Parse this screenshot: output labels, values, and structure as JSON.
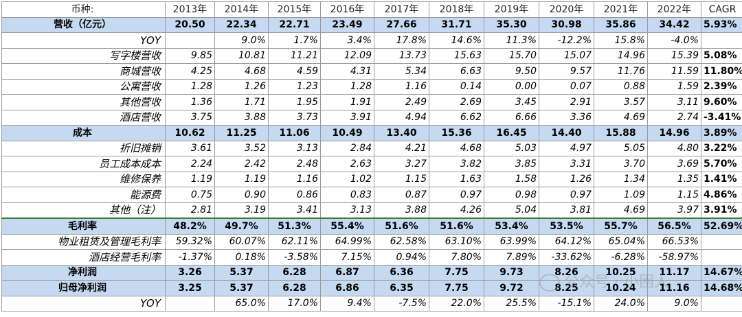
{
  "header": [
    "币种:",
    "2013年",
    "2014年",
    "2015年",
    "2016年",
    "2017年",
    "2018年",
    "2019年",
    "2020年",
    "2021年",
    "2022年",
    "CAGR"
  ],
  "rows": [
    {
      "type": "sum",
      "label": "营收（亿元）",
      "values": [
        "20.50",
        "22.34",
        "22.71",
        "23.49",
        "27.66",
        "31.71",
        "35.30",
        "30.98",
        "35.86",
        "34.42"
      ],
      "cagr": "5.93%"
    },
    {
      "type": "sub",
      "label": "YOY",
      "values": [
        "",
        "9.0%",
        "1.7%",
        "3.4%",
        "17.8%",
        "14.6%",
        "11.3%",
        "-12.2%",
        "15.8%",
        "-4.0%"
      ],
      "cagr": ""
    },
    {
      "type": "sub",
      "label": "写字楼营收",
      "values": [
        "9.85",
        "10.81",
        "11.21",
        "12.09",
        "13.73",
        "15.63",
        "15.70",
        "15.07",
        "14.96",
        "15.39"
      ],
      "cagr": "5.08%"
    },
    {
      "type": "sub",
      "label": "商城营收",
      "values": [
        "4.25",
        "4.68",
        "4.59",
        "4.31",
        "5.34",
        "6.63",
        "9.50",
        "9.57",
        "11.76",
        "11.59"
      ],
      "cagr": "11.80%"
    },
    {
      "type": "sub",
      "label": "公寓营收",
      "values": [
        "1.28",
        "1.26",
        "1.23",
        "1.28",
        "1.16",
        "0.14",
        "0.00",
        "0.07",
        "0.88",
        "1.59"
      ],
      "cagr": "2.39%"
    },
    {
      "type": "sub",
      "label": "其他营收",
      "values": [
        "1.36",
        "1.71",
        "1.95",
        "1.91",
        "2.49",
        "2.69",
        "3.45",
        "2.91",
        "3.57",
        "3.11"
      ],
      "cagr": "9.60%"
    },
    {
      "type": "sub",
      "label": "酒店营收",
      "values": [
        "3.75",
        "3.88",
        "3.73",
        "3.91",
        "4.94",
        "6.62",
        "6.66",
        "3.36",
        "4.69",
        "2.74"
      ],
      "cagr": "-3.41%"
    },
    {
      "type": "sum",
      "label": "成本",
      "values": [
        "10.62",
        "11.25",
        "11.06",
        "10.49",
        "13.40",
        "15.36",
        "16.45",
        "14.40",
        "15.88",
        "14.96"
      ],
      "cagr": "3.89%"
    },
    {
      "type": "sub",
      "label": "折旧摊销",
      "values": [
        "3.61",
        "3.52",
        "3.13",
        "2.84",
        "4.21",
        "4.68",
        "5.03",
        "4.97",
        "5.05",
        "4.80"
      ],
      "cagr": "3.22%"
    },
    {
      "type": "sub",
      "label": "员工成本成本",
      "values": [
        "2.24",
        "2.42",
        "2.48",
        "2.63",
        "3.27",
        "3.82",
        "3.85",
        "3.31",
        "3.70",
        "3.69"
      ],
      "cagr": "5.70%"
    },
    {
      "type": "sub",
      "label": "维修保养",
      "values": [
        "1.19",
        "1.19",
        "1.16",
        "1.02",
        "1.15",
        "1.63",
        "1.58",
        "1.26",
        "1.34",
        "1.35"
      ],
      "cagr": "1.41%"
    },
    {
      "type": "sub",
      "label": "能源费",
      "values": [
        "0.75",
        "0.90",
        "0.86",
        "0.83",
        "0.87",
        "0.97",
        "0.98",
        "0.97",
        "1.09",
        "1.15"
      ],
      "cagr": "4.86%"
    },
    {
      "type": "sub",
      "label": "其他（注）",
      "values": [
        "2.81",
        "3.19",
        "3.41",
        "3.13",
        "3.88",
        "4.26",
        "5.04",
        "3.81",
        "4.69",
        "3.97"
      ],
      "cagr": "3.91%"
    },
    {
      "type": "sum",
      "label": "毛利率",
      "values": [
        "48.2%",
        "49.7%",
        "51.3%",
        "55.4%",
        "51.6%",
        "51.6%",
        "53.4%",
        "53.5%",
        "55.7%",
        "56.5%"
      ],
      "cagr": "52.69%",
      "thick": true
    },
    {
      "type": "sub",
      "label": "物业租赁及管理毛利率",
      "values": [
        "59.32%",
        "60.07%",
        "62.11%",
        "64.99%",
        "62.58%",
        "63.10%",
        "63.99%",
        "64.12%",
        "65.04%",
        "66.53%"
      ],
      "cagr": ""
    },
    {
      "type": "sub",
      "label": "酒店经营毛利率",
      "values": [
        "-1.37%",
        "0.18%",
        "-3.58%",
        "7.15%",
        "0.94%",
        "7.80%",
        "7.89%",
        "-33.62%",
        "-6.28%",
        "-58.97%"
      ],
      "cagr": ""
    },
    {
      "type": "sum",
      "label": "净利润",
      "values": [
        "3.26",
        "5.37",
        "6.28",
        "6.87",
        "6.36",
        "7.75",
        "9.73",
        "8.26",
        "10.25",
        "11.17"
      ],
      "cagr": "14.67%"
    },
    {
      "type": "sum",
      "label": "归母净利润",
      "values": [
        "3.25",
        "5.37",
        "6.28",
        "6.86",
        "6.35",
        "7.75",
        "9.72",
        "8.25",
        "10.24",
        "11.16"
      ],
      "cagr": "14.68%"
    },
    {
      "type": "sub",
      "label": "YOY",
      "values": [
        "",
        "65.0%",
        "17.0%",
        "9.4%",
        "-7.5%",
        "22.0%",
        "25.5%",
        "-15.1%",
        "24.0%",
        "9.0%"
      ],
      "cagr": ""
    }
  ],
  "watermark": "公众号 · 小困人"
}
